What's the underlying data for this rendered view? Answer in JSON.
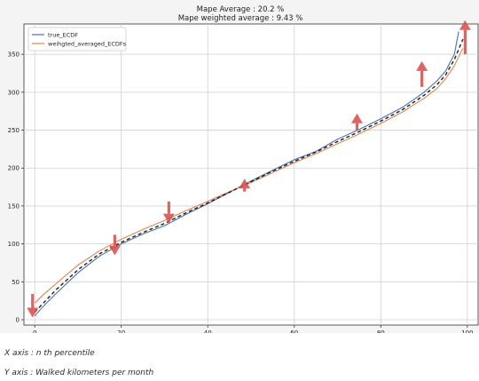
{
  "captions": {
    "x_axis": "X axis : n th percentile",
    "y_axis": "Y axis : Walked kilometers per month"
  },
  "chart_data": {
    "type": "line",
    "title": "Mape Average : 20.2 %",
    "subtitle": "Mape weighted average : 9.43 %",
    "xlabel": "",
    "ylabel": "",
    "xlim": [
      -2.5,
      102.5
    ],
    "ylim": [
      -7,
      390
    ],
    "x_ticks": [
      0,
      20,
      40,
      60,
      80,
      100
    ],
    "y_ticks": [
      0,
      50,
      100,
      150,
      200,
      250,
      300,
      350
    ],
    "grid": true,
    "legend_position": "top-left",
    "series": [
      {
        "name": "true_ECDF",
        "color": "#4c72b0",
        "style": "solid",
        "x": [
          0,
          2,
          5,
          10,
          15,
          20,
          25,
          30,
          35,
          40,
          45,
          50,
          55,
          60,
          65,
          70,
          75,
          80,
          85,
          90,
          93,
          95,
          97,
          98
        ],
        "y": [
          5,
          18,
          35,
          62,
          84,
          100,
          113,
          124,
          139,
          153,
          168,
          183,
          197,
          211,
          222,
          238,
          251,
          265,
          280,
          300,
          315,
          328,
          350,
          380
        ]
      },
      {
        "name": "weihgted_averaged_ECDFs",
        "color": "#dd8452",
        "style": "solid",
        "x": [
          0,
          2,
          5,
          10,
          15,
          20,
          25,
          30,
          35,
          40,
          45,
          50,
          55,
          60,
          65,
          70,
          75,
          80,
          85,
          90,
          93,
          95,
          97,
          99
        ],
        "y": [
          22,
          33,
          48,
          72,
          91,
          106,
          119,
          131,
          144,
          156,
          169,
          181,
          194,
          207,
          219,
          232,
          245,
          259,
          274,
          292,
          305,
          318,
          335,
          358
        ]
      },
      {
        "name": "",
        "color": "#1f1f1f",
        "style": "dashed",
        "x": [
          0,
          2,
          5,
          10,
          15,
          20,
          25,
          30,
          35,
          40,
          45,
          50,
          55,
          60,
          65,
          70,
          75,
          80,
          85,
          90,
          93,
          95,
          97,
          99
        ],
        "y": [
          10,
          22,
          40,
          66,
          87,
          102,
          115,
          127,
          141,
          154,
          168,
          182,
          196,
          209,
          221,
          235,
          248,
          262,
          277,
          296,
          310,
          323,
          343,
          370
        ]
      }
    ],
    "annotations": [
      {
        "type": "arrow-down",
        "x": -0.5,
        "y_from": 34,
        "y_to": 3,
        "color": "#d9534f"
      },
      {
        "type": "arrow-down",
        "x": 18.5,
        "y_from": 112,
        "y_to": 85,
        "color": "#d9534f"
      },
      {
        "type": "arrow-down",
        "x": 31,
        "y_from": 156,
        "y_to": 127,
        "color": "#d9534f"
      },
      {
        "type": "arrow-up",
        "x": 48.5,
        "y_from": 169,
        "y_to": 186,
        "color": "#d9534f"
      },
      {
        "type": "arrow-up",
        "x": 74.5,
        "y_from": 250,
        "y_to": 272,
        "color": "#d9534f"
      },
      {
        "type": "arrow-up",
        "x": 89.5,
        "y_from": 307,
        "y_to": 341,
        "color": "#d9534f"
      },
      {
        "type": "arrow-up",
        "x": 99.5,
        "y_from": 350,
        "y_to": 395,
        "color": "#d9534f"
      }
    ]
  }
}
